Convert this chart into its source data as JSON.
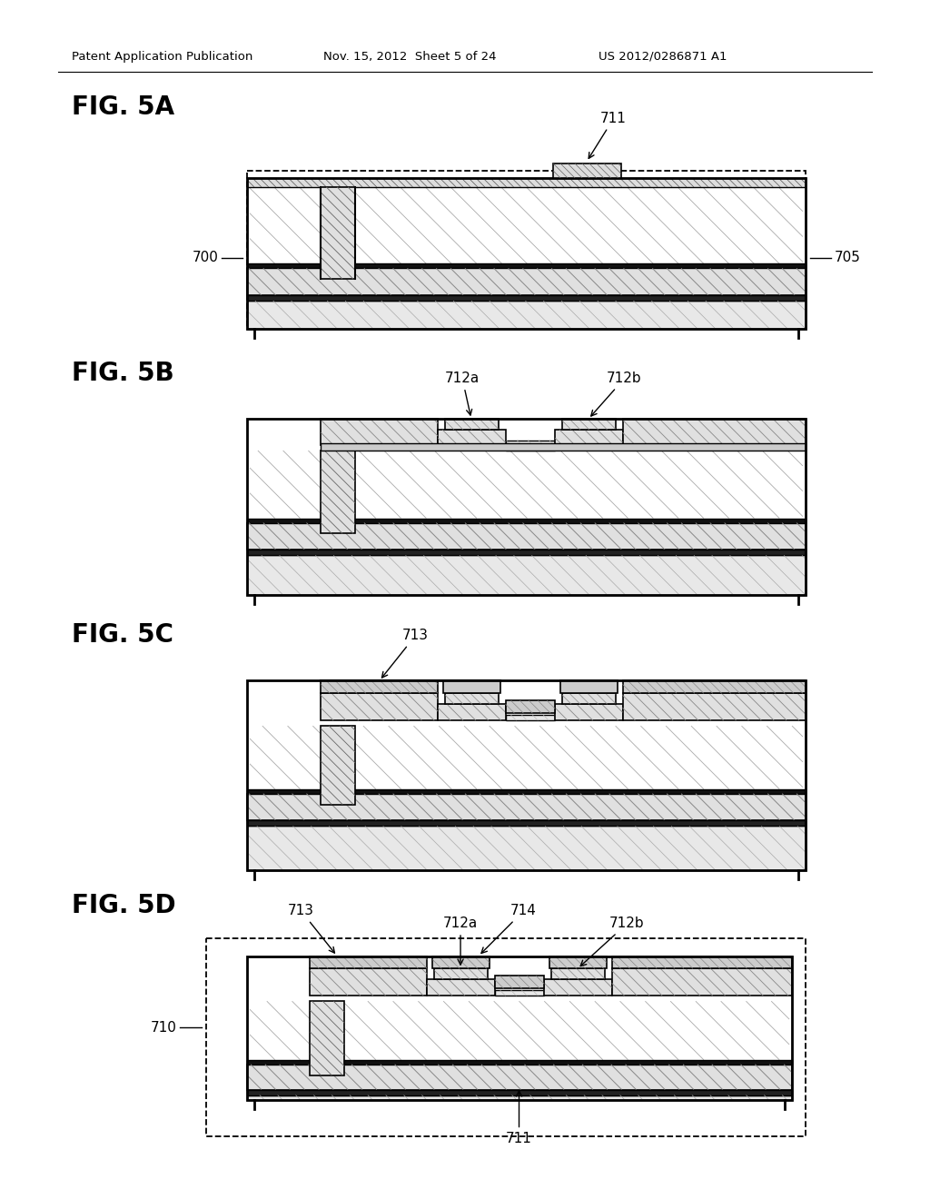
{
  "bg": "#ffffff",
  "lc": "#000000",
  "hdr_left": "Patent Application Publication",
  "hdr_mid": "Nov. 15, 2012  Sheet 5 of 24",
  "hdr_right": "US 2012/0286871 A1"
}
